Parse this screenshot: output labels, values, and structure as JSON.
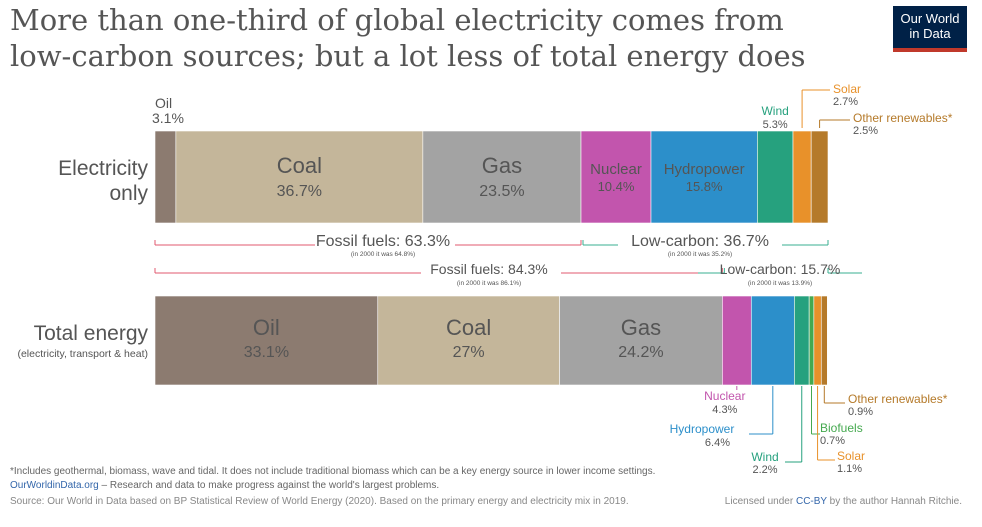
{
  "title_lines": [
    "More than one-third of global electricity comes from",
    "low-carbon sources; but a lot less of total energy does"
  ],
  "logo": {
    "line1": "Our World",
    "line2": "in Data",
    "bg_color": "#002147",
    "accent_color": "#c0392b"
  },
  "chart_data": [
    {
      "type": "bar",
      "orientation": "horizontal-stacked",
      "category": "Electricity only",
      "unit": "%",
      "segments": [
        {
          "name": "Oil",
          "value": 3.1,
          "value_label": "3.1%",
          "color": "#8c7b70"
        },
        {
          "name": "Coal",
          "value": 36.7,
          "value_label": "36.7%",
          "color": "#c4b69a"
        },
        {
          "name": "Gas",
          "value": 23.5,
          "value_label": "23.5%",
          "color": "#a3a3a3"
        },
        {
          "name": "Nuclear",
          "value": 10.4,
          "value_label": "10.4%",
          "color": "#c255ad"
        },
        {
          "name": "Hydropower",
          "value": 15.8,
          "value_label": "15.8%",
          "color": "#2c8fca"
        },
        {
          "name": "Wind",
          "value": 5.3,
          "value_label": "5.3%",
          "color": "#26a17e"
        },
        {
          "name": "Solar",
          "value": 2.7,
          "value_label": "2.7%",
          "color": "#e8912a"
        },
        {
          "name": "Other renewables*",
          "value": 2.5,
          "value_label": "2.5%",
          "color": "#b57a2a"
        }
      ],
      "groups": [
        {
          "label": "Fossil fuels: 63.3%",
          "note": "(in 2000 it was 64.8%)",
          "value": 63.3,
          "color": "#e0586f"
        },
        {
          "label": "Low-carbon: 36.7%",
          "note": "(in 2000 it was 35.2%)",
          "value": 36.7,
          "color": "#3aaf91"
        }
      ]
    },
    {
      "type": "bar",
      "orientation": "horizontal-stacked",
      "category": "Total energy",
      "category_sub": "(electricity, transport & heat)",
      "unit": "%",
      "segments": [
        {
          "name": "Oil",
          "value": 33.1,
          "value_label": "33.1%",
          "color": "#8c7b70"
        },
        {
          "name": "Coal",
          "value": 27,
          "value_label": "27%",
          "color": "#c4b69a"
        },
        {
          "name": "Gas",
          "value": 24.2,
          "value_label": "24.2%",
          "color": "#a3a3a3"
        },
        {
          "name": "Nuclear",
          "value": 4.3,
          "value_label": "4.3%",
          "color": "#c255ad"
        },
        {
          "name": "Hydropower",
          "value": 6.4,
          "value_label": "6.4%",
          "color": "#2c8fca"
        },
        {
          "name": "Wind",
          "value": 2.2,
          "value_label": "2.2%",
          "color": "#26a17e"
        },
        {
          "name": "Biofuels",
          "value": 0.7,
          "value_label": "0.7%",
          "color": "#45a94f"
        },
        {
          "name": "Solar",
          "value": 1.1,
          "value_label": "1.1%",
          "color": "#e8912a"
        },
        {
          "name": "Other renewables*",
          "value": 0.9,
          "value_label": "0.9%",
          "color": "#b57a2a"
        }
      ],
      "groups": [
        {
          "label": "Fossil fuels: 84.3%",
          "note": "(in 2000 it was 86.1%)",
          "value": 84.3,
          "color": "#e0586f"
        },
        {
          "label": "Low-carbon: 15.7%",
          "note": "(in 2000 it was 13.9%)",
          "value": 15.7,
          "color": "#3aaf91"
        }
      ]
    }
  ],
  "footer": {
    "footnote": "*Includes geothermal, biomass, wave and tidal. It does not include traditional biomass which can be a key energy source in lower income settings.",
    "site": "OurWorldinData.org",
    "site_desc": " – Research and data to make progress against the world's largest problems.",
    "source": "Source: Our World in Data based on BP Statistical Review of World Energy (2020). Based on the primary energy and electricity mix in 2019.",
    "license_pre": "Licensed under ",
    "license_cc": "CC-BY",
    "license_post": " by the author Hannah Ritchie."
  }
}
